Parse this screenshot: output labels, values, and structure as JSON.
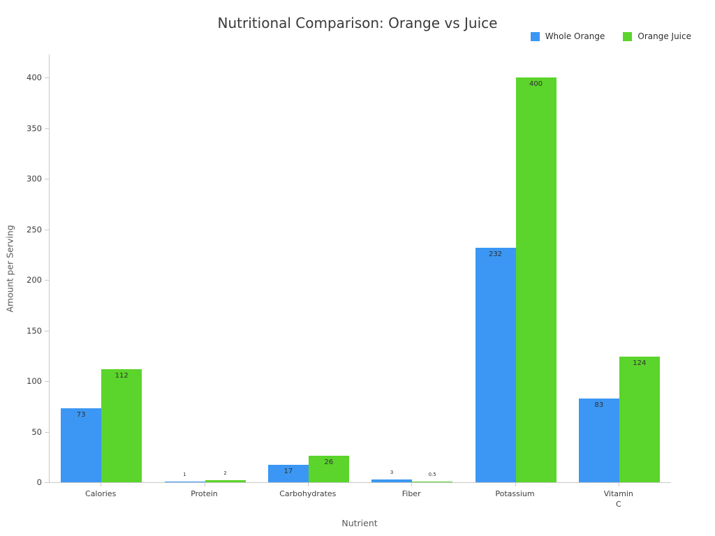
{
  "chart_data": {
    "type": "bar",
    "title": "Nutritional Comparison: Orange vs Juice",
    "xlabel": "Nutrient",
    "ylabel": "Amount per Serving",
    "categories": [
      "Calories",
      "Protein",
      "Carbohydrates",
      "Fiber",
      "Potassium",
      "Vitamin C"
    ],
    "tick_labels": [
      "Calories",
      "Protein",
      "Carbohydrates",
      "Fiber",
      "Potassium",
      "Vitamin\nC"
    ],
    "series": [
      {
        "name": "Whole Orange",
        "color": "#3b97f3",
        "values": [
          73,
          1,
          17,
          3,
          232,
          83
        ]
      },
      {
        "name": "Orange Juice",
        "color": "#5bd42b",
        "values": [
          112,
          2,
          26,
          0.5,
          400,
          124
        ]
      }
    ],
    "yticks": [
      0,
      50,
      100,
      150,
      200,
      250,
      300,
      350,
      400
    ],
    "ylim": [
      0,
      423
    ],
    "grid": false,
    "legend_position": "top-right"
  },
  "colors": {
    "background": "#ffffff",
    "axis": "#c9c9c9",
    "tick_text": "#3d3d3d",
    "title_text": "#3a3a3a",
    "axis_label_text": "#595959",
    "bar_label_text": "#2f2f2f"
  }
}
